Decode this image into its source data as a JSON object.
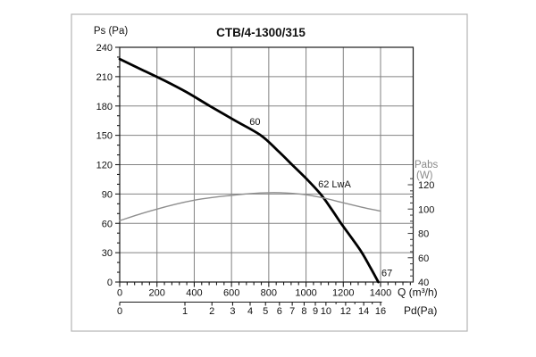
{
  "figure": {
    "background": "#ffffff",
    "border_color": "#b3b3b3"
  },
  "chart_data": {
    "type": "line",
    "title": "CTB/4-1300/315",
    "grid": true,
    "axes": {
      "y_left": {
        "label": "Ps (Pa)",
        "min": 0,
        "max": 240,
        "major_step": 30,
        "minor_step": 10,
        "tick_labels": [
          "0",
          "30",
          "60",
          "90",
          "120",
          "150",
          "180",
          "210",
          "240"
        ]
      },
      "x_bottom": {
        "label": "Q (m³/h)",
        "min": 0,
        "max": 1400,
        "major_step": 200,
        "minor_step": 40,
        "tick_labels": [
          "0",
          "200",
          "400",
          "600",
          "800",
          "1000",
          "1200",
          "1400"
        ]
      },
      "y_right": {
        "label_line1": "Pabs",
        "label_line2": "(W)",
        "min": 40,
        "max": 120,
        "major_step": 20,
        "minor_step": 5,
        "tick_labels": [
          "40",
          "60",
          "80",
          "100",
          "120"
        ]
      },
      "x_pd": {
        "label": "Pd(Pa)",
        "relation": "Pd = 16 * (Q/1400)^2",
        "major_ticks": [
          0,
          1,
          2,
          3,
          4,
          5,
          6,
          7,
          8,
          9,
          10,
          12,
          14,
          16
        ],
        "minor_ticks": [
          11,
          13,
          15
        ]
      }
    },
    "series": [
      {
        "name": "static-pressure-curve",
        "y_axis": "left",
        "color": "#000000",
        "stroke_width": 2.8,
        "points": [
          [
            0,
            228
          ],
          [
            120,
            217
          ],
          [
            240,
            206
          ],
          [
            360,
            194
          ],
          [
            484,
            180
          ],
          [
            620,
            165
          ],
          [
            757,
            150
          ],
          [
            845,
            135
          ],
          [
            925,
            120
          ],
          [
            1005,
            105
          ],
          [
            1078,
            90
          ],
          [
            1135,
            75
          ],
          [
            1188,
            60
          ],
          [
            1245,
            45
          ],
          [
            1300,
            30
          ],
          [
            1345,
            15
          ],
          [
            1388,
            0
          ]
        ]
      },
      {
        "name": "absorbed-power-curve",
        "y_axis": "right",
        "color": "#8f8f8f",
        "stroke_width": 1.4,
        "points": [
          [
            0,
            90.5
          ],
          [
            100,
            95.5
          ],
          [
            200,
            100
          ],
          [
            300,
            104
          ],
          [
            400,
            107.3
          ],
          [
            500,
            109.6
          ],
          [
            600,
            111.3
          ],
          [
            700,
            112.7
          ],
          [
            800,
            113.5
          ],
          [
            900,
            113.2
          ],
          [
            1000,
            111.8
          ],
          [
            1100,
            108.9
          ],
          [
            1200,
            105.2
          ],
          [
            1300,
            101.5
          ],
          [
            1400,
            98.3
          ]
        ]
      }
    ],
    "annotations": [
      {
        "text": "60",
        "q": 726,
        "ps": 163.3,
        "anchor": "middle"
      },
      {
        "text": "62 LwA",
        "q": 1065,
        "ps": 99.5,
        "anchor": "start"
      },
      {
        "text": "67",
        "q": 1405,
        "ps": 8.7,
        "anchor": "start"
      }
    ],
    "style": {
      "grid_color": "#828282",
      "frame_color": "#1a1a1a",
      "right_axis_color": "#4a4a4a",
      "right_label_color": "#8a8a8a",
      "annotation_color": "#111111"
    }
  }
}
